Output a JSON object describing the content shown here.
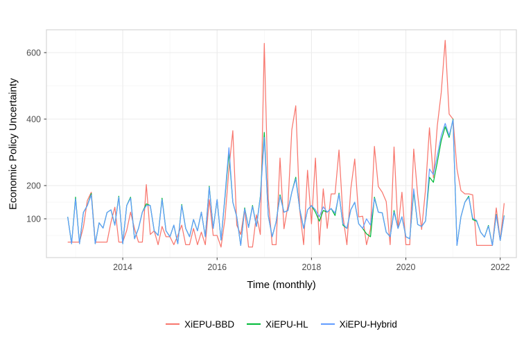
{
  "figure": {
    "y_axis_title": "Economic Policy Uncertainty",
    "x_axis_title": "Time (monthly)"
  },
  "legend": {
    "items": [
      {
        "label": "XiEPU-BBD",
        "color": "#F8766D"
      },
      {
        "label": "XiEPU-HL",
        "color": "#00BA38"
      },
      {
        "label": "XiEPU-Hybrid",
        "color": "#619CFF"
      }
    ]
  },
  "chart_data": {
    "type": "line",
    "title": "",
    "xlabel": "Time (monthly)",
    "ylabel": "Economic Policy Uncertainty",
    "x_unit": "month",
    "x_start": "2012-11",
    "x_end": "2022-02",
    "x_tick_labels": [
      "2014",
      "2016",
      "2018",
      "2020",
      "2022"
    ],
    "x_ticks": [
      2014,
      2016,
      2018,
      2020,
      2022
    ],
    "x_minor_ticks": [
      2013,
      2015,
      2017,
      2019,
      2021
    ],
    "y_tick_labels": [
      "100",
      "200",
      "400",
      "600"
    ],
    "y_ticks": [
      100,
      200,
      400,
      600
    ],
    "y_minor_ticks": [
      50,
      150,
      300,
      500
    ],
    "ylim": [
      -17,
      669
    ],
    "xlim_years": [
      2012.38,
      2022.35
    ],
    "grid": "major-and-minor",
    "legend_position": "bottom-center",
    "panel_border_color": "#d6d6d6",
    "grid_major_color": "#ebebeb",
    "grid_minor_color": "#f5f5f5",
    "tick_label_color": "#4d4d4d",
    "series": [
      {
        "name": "XiEPU-BBD",
        "color": "#F8766D",
        "values": [
          30,
          30,
          30,
          30,
          75,
          155,
          180,
          30,
          30,
          30,
          30,
          90,
          135,
          30,
          30,
          65,
          120,
          70,
          30,
          30,
          203,
          53,
          64,
          22,
          77,
          46,
          46,
          22,
          50,
          81,
          22,
          22,
          71,
          22,
          60,
          22,
          158,
          50,
          50,
          15,
          100,
          250,
          365,
          81,
          53,
          130,
          15,
          15,
          112,
          53,
          628,
          161,
          22,
          22,
          283,
          70,
          140,
          368,
          440,
          127,
          22,
          246,
          85,
          283,
          22,
          190,
          71,
          175,
          175,
          307,
          108,
          22,
          190,
          280,
          106,
          108,
          22,
          70,
          318,
          197,
          180,
          152,
          22,
          316,
          71,
          180,
          22,
          22,
          310,
          172,
          68,
          188,
          374,
          224,
          380,
          480,
          637,
          415,
          400,
          250,
          185,
          175,
          175,
          172,
          20,
          20,
          20,
          20,
          20,
          133,
          35,
          147
        ]
      },
      {
        "name": "XiEPU-HL",
        "color": "#00BA38",
        "values": [
          106,
          25,
          165,
          25,
          119,
          140,
          176,
          25,
          88,
          72,
          119,
          127,
          81,
          168,
          25,
          140,
          165,
          40,
          71,
          120,
          145,
          140,
          64,
          50,
          162,
          64,
          46,
          81,
          25,
          143,
          71,
          46,
          98,
          64,
          120,
          46,
          198,
          71,
          158,
          36,
          165,
          300,
          150,
          106,
          20,
          133,
          74,
          140,
          77,
          168,
          360,
          110,
          46,
          90,
          172,
          120,
          125,
          180,
          225,
          130,
          71,
          127,
          140,
          120,
          93,
          125,
          120,
          131,
          110,
          177,
          81,
          71,
          127,
          150,
          85,
          71,
          55,
          46,
          165,
          120,
          118,
          60,
          46,
          125,
          71,
          106,
          46,
          40,
          182,
          83,
          77,
          93,
          225,
          210,
          270,
          335,
          377,
          345,
          400,
          20,
          106,
          150,
          168,
          98,
          93,
          60,
          45,
          80,
          20,
          113,
          35,
          110
        ]
      },
      {
        "name": "XiEPU-Hybrid",
        "color": "#619CFF",
        "values": [
          106,
          25,
          160,
          25,
          119,
          140,
          172,
          25,
          88,
          72,
          119,
          127,
          81,
          165,
          25,
          140,
          162,
          40,
          71,
          120,
          140,
          140,
          64,
          50,
          158,
          64,
          46,
          81,
          25,
          140,
          71,
          46,
          98,
          64,
          120,
          46,
          195,
          71,
          158,
          36,
          170,
          314,
          150,
          106,
          20,
          130,
          74,
          137,
          77,
          165,
          345,
          110,
          46,
          90,
          168,
          120,
          125,
          180,
          220,
          130,
          71,
          127,
          140,
          127,
          106,
          136,
          120,
          131,
          117,
          174,
          85,
          71,
          127,
          150,
          85,
          71,
          100,
          81,
          161,
          120,
          118,
          60,
          46,
          120,
          71,
          106,
          46,
          40,
          190,
          83,
          77,
          93,
          250,
          233,
          290,
          350,
          387,
          350,
          398,
          20,
          106,
          150,
          165,
          102,
          95,
          60,
          45,
          78,
          20,
          112,
          35,
          109
        ]
      }
    ]
  }
}
